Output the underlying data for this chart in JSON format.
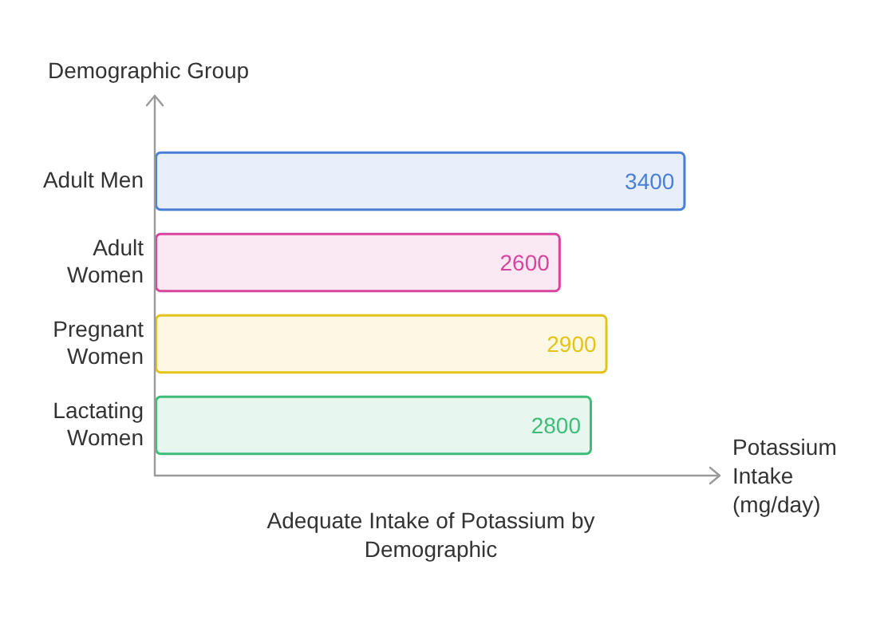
{
  "chart_data": {
    "type": "bar",
    "orientation": "horizontal",
    "title": "Adequate Intake of Potassium by Demographic",
    "xlabel": "Potassium Intake (mg/day)",
    "ylabel": "Demographic Group",
    "categories": [
      "Adult Men",
      "Adult Women",
      "Pregnant Women",
      "Lactating Women"
    ],
    "values": [
      3400,
      2600,
      2900,
      2800
    ],
    "colors": [
      "#4a7fd6",
      "#d9449f",
      "#e3c31c",
      "#3dbd78"
    ],
    "data_labels": true
  }
}
